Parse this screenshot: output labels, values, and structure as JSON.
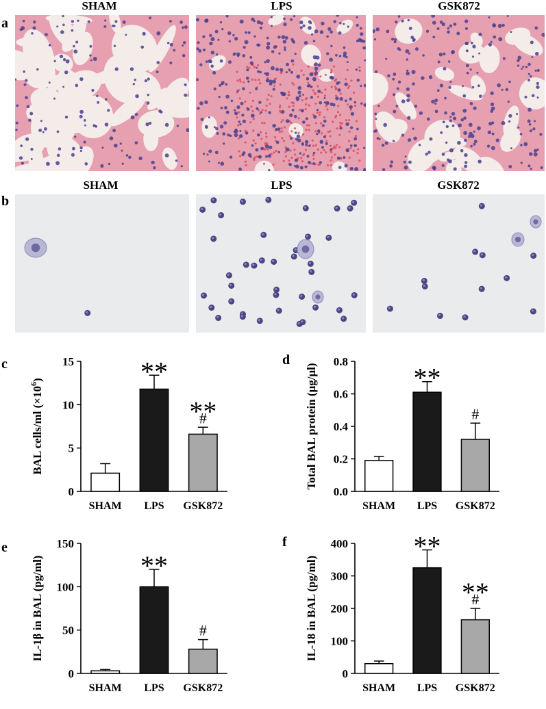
{
  "figure": {
    "panel_labels": {
      "a": "a",
      "b": "b",
      "c": "c",
      "d": "d",
      "e": "e",
      "f": "f"
    },
    "row_a_titles": [
      "SHAM",
      "LPS",
      "GSK872"
    ],
    "row_b_titles": [
      "SHAM",
      "LPS",
      "GSK872"
    ],
    "colors": {
      "he_background": "#f4ece9",
      "he_tissue": "#e6a0b0",
      "he_nucleus": "#4a3f8f",
      "cytospin_background": "#e9ebec",
      "cytospin_cell": "#4b4584",
      "bar_sham": "#ffffff",
      "bar_lps": "#1a1a1a",
      "bar_gsk872": "#a8a8a8"
    }
  },
  "chart_data": [
    {
      "panel": "c",
      "type": "bar",
      "categories": [
        "SHAM",
        "LPS",
        "GSK872"
      ],
      "values": [
        2.1,
        11.8,
        6.6
      ],
      "errors": [
        1.1,
        1.6,
        0.8
      ],
      "significance": [
        "",
        "**",
        "**#"
      ],
      "ylabel_main": "BAL cells/ml (×10",
      "ylabel_sup": "6",
      "ylabel_end": ")",
      "ylim": [
        0,
        15
      ],
      "yticks": [
        0,
        5,
        10,
        15
      ],
      "ytick_labels": [
        "0",
        "5",
        "10",
        "15"
      ]
    },
    {
      "panel": "d",
      "type": "bar",
      "categories": [
        "SHAM",
        "LPS",
        "GSK872"
      ],
      "values": [
        0.19,
        0.61,
        0.32
      ],
      "errors": [
        0.025,
        0.065,
        0.1
      ],
      "significance": [
        "",
        "**",
        "#"
      ],
      "ylabel_main": "Total BAL protein (μg/μl)",
      "ylim": [
        0,
        0.8
      ],
      "yticks": [
        0,
        0.2,
        0.4,
        0.6,
        0.8
      ],
      "ytick_labels": [
        "0.0",
        "0.2",
        "0.4",
        "0.6",
        "0.8"
      ]
    },
    {
      "panel": "e",
      "type": "bar",
      "categories": [
        "SHAM",
        "LPS",
        "GSK872"
      ],
      "values": [
        3,
        100,
        28
      ],
      "errors": [
        1.5,
        20,
        11
      ],
      "significance": [
        "",
        "**",
        "#"
      ],
      "ylabel_main": "IL-1β in BAL (pg/ml)",
      "ylim": [
        0,
        150
      ],
      "yticks": [
        0,
        50,
        100,
        150
      ],
      "ytick_labels": [
        "0",
        "50",
        "100",
        "150"
      ]
    },
    {
      "panel": "f",
      "type": "bar",
      "categories": [
        "SHAM",
        "LPS",
        "GSK872"
      ],
      "values": [
        30,
        325,
        165
      ],
      "errors": [
        8,
        55,
        35
      ],
      "significance": [
        "",
        "**",
        "**#"
      ],
      "ylabel_main": "IL-18 in BAL (pg/ml)",
      "ylim": [
        0,
        400
      ],
      "yticks": [
        0,
        100,
        200,
        300,
        400
      ],
      "ytick_labels": [
        "0",
        "100",
        "200",
        "300",
        "400"
      ]
    }
  ]
}
